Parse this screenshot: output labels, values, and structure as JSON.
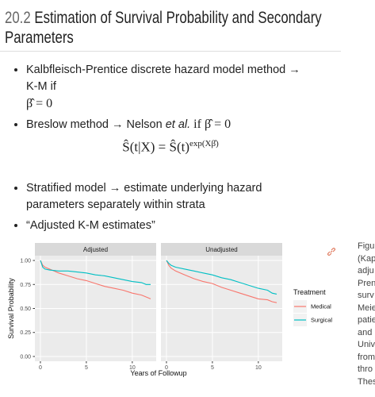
{
  "header": {
    "number": "20.2",
    "title": "Estimation of Survival Probability and Secondary Parameters"
  },
  "bullets": [
    {
      "text": "Kalbfleisch-Prentice discrete hazard model method → K-M if",
      "math": "β̂ = 0"
    },
    {
      "before": "Breslow method → Nelson",
      "em": "et al.",
      "after": "if β̂ = 0"
    }
  ],
  "formula": {
    "lhs": "Ŝ(t|X) = Ŝ(t)",
    "exponent": "exp(Xβ̂)"
  },
  "bullets2": [
    "Stratified model → estimate underlying hazard parameters separately within strata",
    "“Adjusted K-M estimates”"
  ],
  "chart_data": {
    "type": "line",
    "ylabel": "Survival Probability",
    "xlabel": "Years of Followup",
    "legend_title": "Treatment",
    "series": [
      {
        "name": "Medical",
        "color": "#F8766D"
      },
      {
        "name": "Surgical",
        "color": "#00BFC4"
      }
    ],
    "x": [
      0,
      0.25,
      0.5,
      1,
      2,
      3,
      4,
      5,
      6,
      7,
      8,
      9,
      10,
      11,
      11.5,
      12
    ],
    "panels": [
      {
        "title": "Adjusted",
        "values": [
          [
            1,
            0.95,
            0.93,
            0.91,
            0.87,
            0.84,
            0.81,
            0.79,
            0.76,
            0.73,
            0.71,
            0.69,
            0.66,
            0.64,
            0.62,
            0.6
          ],
          [
            1,
            0.93,
            0.91,
            0.9,
            0.89,
            0.89,
            0.88,
            0.87,
            0.85,
            0.84,
            0.82,
            0.8,
            0.78,
            0.77,
            0.75,
            0.75
          ]
        ]
      },
      {
        "title": "Unadjusted",
        "values": [
          [
            1,
            0.95,
            0.92,
            0.89,
            0.85,
            0.81,
            0.78,
            0.76,
            0.72,
            0.69,
            0.66,
            0.63,
            0.6,
            0.59,
            0.57,
            0.56
          ],
          [
            1,
            0.97,
            0.95,
            0.93,
            0.91,
            0.89,
            0.87,
            0.85,
            0.82,
            0.8,
            0.77,
            0.74,
            0.71,
            0.69,
            0.66,
            0.65
          ]
        ]
      }
    ],
    "xlim": [
      -0.6,
      12.6
    ],
    "xticks": [
      0,
      5,
      10
    ],
    "ylim": [
      -0.05,
      1.05
    ],
    "yticks": [
      {
        "value": 0,
        "label": "0.00"
      },
      {
        "value": 0.25,
        "label": "0.25"
      },
      {
        "value": 0.5,
        "label": "0.50"
      },
      {
        "value": 0.75,
        "label": "0.75"
      },
      {
        "value": 1,
        "label": "1.00"
      }
    ],
    "grid": true
  },
  "caption_lines": [
    "Figu",
    "(Kap",
    "adju",
    "Pren",
    "surv",
    "Meie",
    "patie",
    "and",
    "Univ",
    "from",
    "thro",
    "Thes"
  ]
}
